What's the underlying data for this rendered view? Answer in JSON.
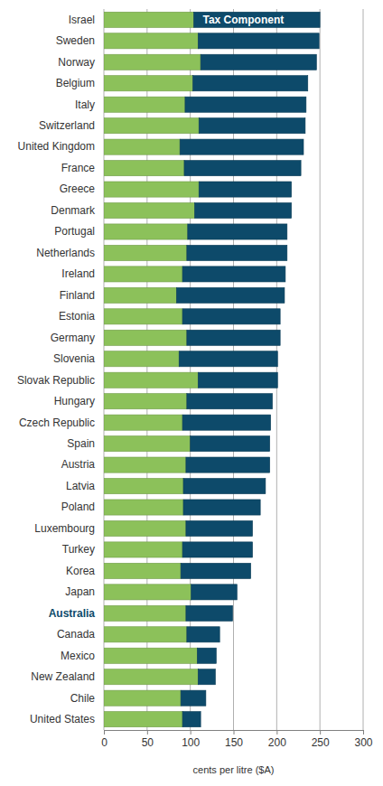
{
  "chart_data": {
    "type": "bar",
    "orientation": "horizontal",
    "stacked": true,
    "grid": true,
    "x_label": "cents per litre ($A)",
    "categories": [
      "Israel",
      "Sweden",
      "Norway",
      "Belgium",
      "Italy",
      "Switzerland",
      "United Kingdom",
      "France",
      "Greece",
      "Denmark",
      "Portugal",
      "Netherlands",
      "Ireland",
      "Finland",
      "Estonia",
      "Germany",
      "Slovenia",
      "Slovak Republic",
      "Hungary",
      "Czech Republic",
      "Spain",
      "Austria",
      "Latvia",
      "Poland",
      "Luxembourg",
      "Turkey",
      "Korea",
      "Japan",
      "Australia",
      "Canada",
      "Mexico",
      "New Zealand",
      "Chile",
      "United States"
    ],
    "series": [
      {
        "color": "#8cc15a",
        "values": [
          104,
          109,
          112,
          103,
          94,
          110,
          88,
          93,
          110,
          105,
          97,
          96,
          91,
          84,
          91,
          96,
          87,
          109,
          96,
          91,
          100,
          95,
          92,
          92,
          95,
          91,
          89,
          101,
          95,
          96,
          108,
          109,
          89,
          91
        ]
      },
      {
        "name": "Tax Component",
        "color": "#0d4a6a",
        "values": [
          146,
          140,
          134,
          133,
          140,
          123,
          143,
          135,
          107,
          112,
          115,
          116,
          119,
          125,
          113,
          108,
          114,
          92,
          99,
          102,
          92,
          97,
          95,
          89,
          77,
          81,
          81,
          53,
          54,
          38,
          22,
          20,
          29,
          21
        ]
      }
    ],
    "xlim": [
      0,
      300
    ],
    "xticks": [
      0,
      50,
      100,
      150,
      200,
      250,
      300
    ]
  }
}
